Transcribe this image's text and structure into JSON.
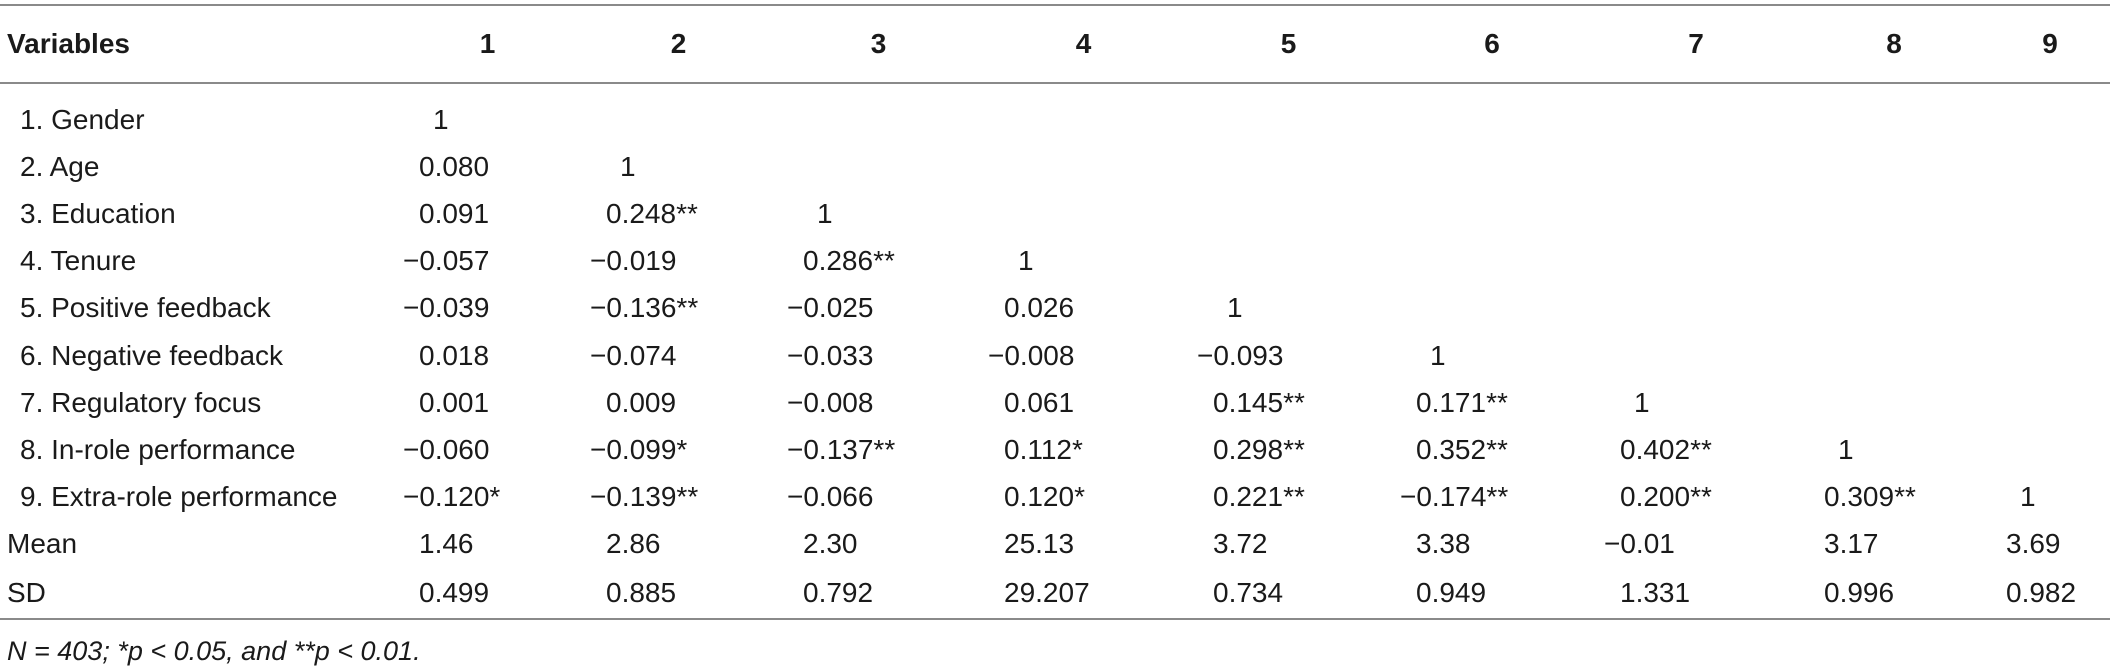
{
  "table": {
    "headers": [
      "Variables",
      "1",
      "2",
      "3",
      "4",
      "5",
      "6",
      "7",
      "8",
      "9"
    ],
    "rows": [
      {
        "label": "1. Gender",
        "cells": [
          "1",
          "",
          "",
          "",
          "",
          "",
          "",
          "",
          ""
        ]
      },
      {
        "label": "2. Age",
        "cells": [
          "0.080",
          "1",
          "",
          "",
          "",
          "",
          "",
          "",
          ""
        ]
      },
      {
        "label": "3. Education",
        "cells": [
          "0.091",
          "0.248**",
          "1",
          "",
          "",
          "",
          "",
          "",
          ""
        ]
      },
      {
        "label": "4. Tenure",
        "cells": [
          "−0.057",
          "−0.019",
          "0.286**",
          "1",
          "",
          "",
          "",
          "",
          ""
        ]
      },
      {
        "label": "5. Positive feedback",
        "cells": [
          "−0.039",
          "−0.136**",
          "−0.025",
          "0.026",
          "1",
          "",
          "",
          "",
          ""
        ]
      },
      {
        "label": "6. Negative feedback",
        "cells": [
          "0.018",
          "−0.074",
          "−0.033",
          "−0.008",
          "−0.093",
          "1",
          "",
          "",
          ""
        ]
      },
      {
        "label": "7. Regulatory focus",
        "cells": [
          "0.001",
          "0.009",
          "−0.008",
          "0.061",
          "0.145**",
          "0.171**",
          "1",
          "",
          ""
        ]
      },
      {
        "label": "8. In-role performance",
        "cells": [
          "−0.060",
          "−0.099*",
          "−0.137**",
          "0.112*",
          "0.298**",
          "0.352**",
          "0.402**",
          "1",
          ""
        ]
      },
      {
        "label": "9. Extra-role performance",
        "cells": [
          "−0.120*",
          "−0.139**",
          "−0.066",
          "0.120*",
          "0.221**",
          "−0.174**",
          "0.200**",
          "0.309**",
          "1"
        ]
      },
      {
        "label": "Mean",
        "cells": [
          "1.46",
          "2.86",
          "2.30",
          "25.13",
          "3.72",
          "3.38",
          "−0.01",
          "3.17",
          "3.69"
        ]
      },
      {
        "label": "SD",
        "cells": [
          "0.499",
          "0.885",
          "0.792",
          "29.207",
          "0.734",
          "0.949",
          "1.331",
          "0.996",
          "0.982"
        ]
      }
    ]
  },
  "footnote": "N = 403; *p < 0.05, and **p < 0.01."
}
